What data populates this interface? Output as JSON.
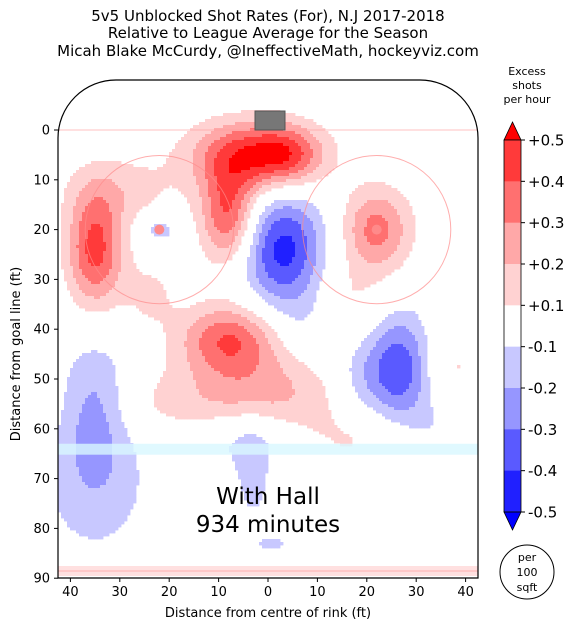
{
  "chart_data": {
    "type": "heatmap",
    "title": [
      "5v5 Unblocked Shot Rates (For), N.J 2017-2018",
      "Relative to League Average for the Season",
      "Micah Blake McCurdy, @IneffectiveMath, hockeyviz.com"
    ],
    "xlabel": "Distance from centre of rink (ft)",
    "ylabel": "Distance from goal line (ft)",
    "xlim": [
      42.5,
      -42.5
    ],
    "ylim": [
      0,
      90
    ],
    "x_ticks": [
      "40",
      "30",
      "20",
      "10",
      "0",
      "10",
      "20",
      "30",
      "40"
    ],
    "x_tick_values": [
      40,
      30,
      20,
      10,
      0,
      -10,
      -20,
      -30,
      -40
    ],
    "y_ticks": [
      "0",
      "10",
      "20",
      "30",
      "40",
      "50",
      "60",
      "70",
      "80",
      "90"
    ],
    "y_tick_values": [
      0,
      10,
      20,
      30,
      40,
      50,
      60,
      70,
      80,
      90
    ],
    "annotation": [
      "With Hall",
      "934 minutes"
    ],
    "colorbar": {
      "title": [
        "Excess",
        "shots",
        "per hour"
      ],
      "levels": [
        "+0.5",
        "+0.4",
        "+0.3",
        "+0.2",
        "+0.1",
        "-0.1",
        "-0.2",
        "-0.3",
        "-0.4",
        "-0.5"
      ],
      "colors": [
        "#ff0000",
        "#ff3a3a",
        "#ff7070",
        "#ffa8a8",
        "#ffd2d2",
        "#ffffff",
        "#c8c8ff",
        "#9696ff",
        "#5a5aff",
        "#2020ff",
        "#0000ff"
      ],
      "unit_badge": [
        "per",
        "100",
        "sqft"
      ]
    },
    "blobs": [
      {
        "x": 3,
        "y": 5,
        "sx": 9,
        "sy": 5,
        "v": 0.44
      },
      {
        "x": 8,
        "y": 17,
        "sx": 4,
        "sy": 7,
        "v": 0.42
      },
      {
        "x": -4,
        "y": 5,
        "sx": 5,
        "sy": 4,
        "v": 0.22
      },
      {
        "x": 35,
        "y": 24,
        "sx": 4,
        "sy": 8,
        "v": 0.44
      },
      {
        "x": -22,
        "y": 20,
        "sx": 5,
        "sy": 6,
        "v": 0.34
      },
      {
        "x": 8,
        "y": 42,
        "sx": 7,
        "sy": 5,
        "v": 0.38
      },
      {
        "x": 30,
        "y": 12,
        "sx": 8,
        "sy": 5,
        "v": 0.14
      },
      {
        "x": 0,
        "y": 52,
        "sx": 11,
        "sy": 6,
        "v": 0.2
      },
      {
        "x": -14,
        "y": 35,
        "sx": 7,
        "sy": 6,
        "v": 0.14
      },
      {
        "x": -35,
        "y": 48,
        "sx": 6,
        "sy": 7,
        "v": 0.16
      },
      {
        "x": 20,
        "y": 55,
        "sx": 14,
        "sy": 5,
        "v": 0.11
      },
      {
        "x": -20,
        "y": 62,
        "sx": 10,
        "sy": 5,
        "v": 0.12
      },
      {
        "x": 24,
        "y": 33,
        "sx": 4,
        "sy": 5,
        "v": 0.12
      },
      {
        "x": -3,
        "y": 24,
        "sx": 6,
        "sy": 8,
        "v": -0.44
      },
      {
        "x": -27,
        "y": 48,
        "sx": 5,
        "sy": 8,
        "v": -0.44
      },
      {
        "x": 35,
        "y": 55,
        "sx": 5,
        "sy": 9,
        "v": -0.24
      },
      {
        "x": 35,
        "y": 72,
        "sx": 8,
        "sy": 10,
        "v": -0.16
      },
      {
        "x": 22,
        "y": 20,
        "sx": 3,
        "sy": 2,
        "v": -0.16
      },
      {
        "x": -8,
        "y": 38,
        "sx": 5,
        "sy": 6,
        "v": -0.14
      },
      {
        "x": 5,
        "y": 62,
        "sx": 8,
        "sy": 4,
        "v": -0.13
      },
      {
        "x": -18,
        "y": 50,
        "sx": 4,
        "sy": 6,
        "v": -0.12
      },
      {
        "x": 3,
        "y": 70,
        "sx": 3,
        "sy": 8,
        "v": -0.13
      },
      {
        "x": -1,
        "y": 83,
        "sx": 2,
        "sy": 1,
        "v": -0.16
      },
      {
        "x": -35,
        "y": 60,
        "sx": 5,
        "sy": 5,
        "v": -0.12
      }
    ]
  }
}
